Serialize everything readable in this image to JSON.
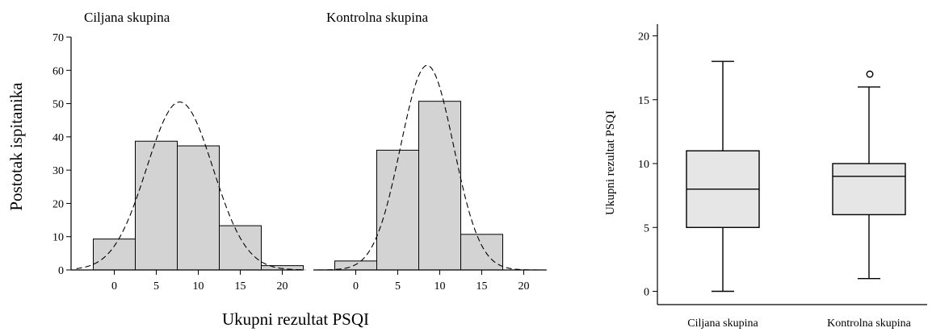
{
  "chart_data": [
    {
      "type": "bar",
      "subtype": "histogram",
      "title": "Ciljana skupina",
      "xlabel": "Ukupni rezultat PSQI",
      "ylabel": "Postotak ispitanika",
      "bin_centers": [
        0,
        5,
        10,
        15,
        20
      ],
      "bin_width": 5,
      "values": [
        9.3,
        38.7,
        37.3,
        13.3,
        1.3
      ],
      "normal_curve": {
        "mean": 7.8,
        "sd": 3.95,
        "peak": 50.5,
        "style": "dashed"
      },
      "xticks": [
        0,
        5,
        10,
        15,
        20
      ],
      "yticks": [
        0,
        10,
        20,
        30,
        40,
        50,
        60,
        70
      ],
      "xlim": [
        -5,
        23
      ],
      "ylim": [
        0,
        70
      ]
    },
    {
      "type": "bar",
      "subtype": "histogram",
      "title": "Kontrolna skupina",
      "xlabel": "Ukupni rezultat PSQI",
      "ylabel": "Postotak ispitanika",
      "bin_centers": [
        0,
        5,
        10,
        15,
        20
      ],
      "bin_width": 5,
      "values": [
        2.7,
        36.0,
        50.7,
        10.7,
        0
      ],
      "normal_curve": {
        "mean": 8.5,
        "sd": 3.15,
        "peak": 61.5,
        "style": "dashed"
      },
      "xticks": [
        0,
        5,
        10,
        15,
        20
      ],
      "yticks": [
        0,
        10,
        20,
        30,
        40,
        50,
        60,
        70
      ],
      "xlim": [
        -5,
        23
      ],
      "ylim": [
        0,
        70
      ]
    },
    {
      "type": "boxplot",
      "title": "",
      "xlabel": "",
      "ylabel": "Ukupni rezultat PSQI",
      "categories": [
        "Ciljana skupina",
        "Kontrolna skupina"
      ],
      "boxes": [
        {
          "name": "Ciljana skupina",
          "min": 0,
          "q1": 5,
          "median": 8,
          "q3": 11,
          "max": 18,
          "outliers": []
        },
        {
          "name": "Kontrolna skupina",
          "min": 1,
          "q1": 6,
          "median": 9,
          "q3": 10,
          "max": 16,
          "outliers": [
            17
          ]
        }
      ],
      "yticks": [
        0,
        5,
        10,
        15,
        20
      ],
      "ylim": [
        -1,
        21
      ]
    }
  ]
}
